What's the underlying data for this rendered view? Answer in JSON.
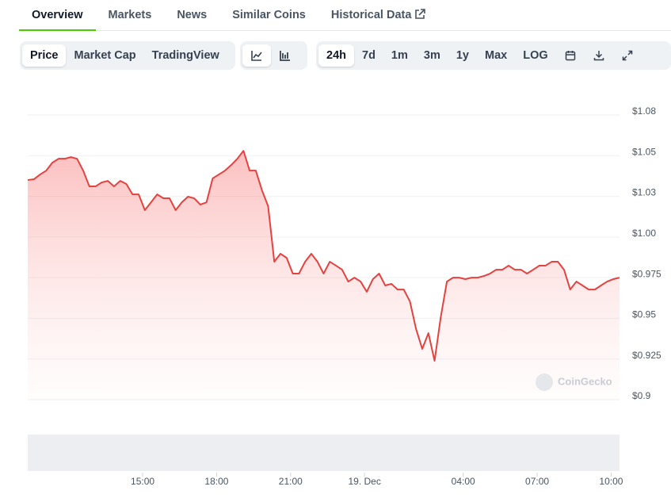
{
  "tabs": [
    "Overview",
    "Markets",
    "News",
    "Similar Coins",
    "Historical Data"
  ],
  "chart_type_buttons": [
    "Price",
    "Market Cap",
    "TradingView"
  ],
  "range_buttons": [
    "24h",
    "7d",
    "1m",
    "3m",
    "1y",
    "Max",
    "LOG"
  ],
  "watermark": "CoinGecko",
  "chart_data": {
    "type": "line",
    "color": "#e5423f",
    "grid": true,
    "ylim": [
      0.9,
      1.075
    ],
    "yticks": [
      {
        "value": 0.9,
        "label": "$0.9"
      },
      {
        "value": 0.925,
        "label": "$0.925"
      },
      {
        "value": 0.95,
        "label": "$0.95"
      },
      {
        "value": 0.975,
        "label": "$0.975"
      },
      {
        "value": 1.0,
        "label": "$1.00"
      },
      {
        "value": 1.025,
        "label": "$1.03"
      },
      {
        "value": 1.05,
        "label": "$1.05"
      },
      {
        "value": 1.075,
        "label": "$1.08"
      }
    ],
    "xticks": [
      {
        "value": 18.64,
        "label": "15:00"
      },
      {
        "value": 30.64,
        "label": "18:00"
      },
      {
        "value": 42.64,
        "label": "21:00"
      },
      {
        "value": 54.64,
        "label": "19. Dec"
      },
      {
        "value": 70.64,
        "label": "04:00"
      },
      {
        "value": 82.64,
        "label": "07:00"
      },
      {
        "value": 94.64,
        "label": "10:00"
      }
    ],
    "values": [
      1.035,
      1.0355,
      1.0384,
      1.0408,
      1.0457,
      1.0481,
      1.0481,
      1.0491,
      1.0481,
      1.0408,
      1.0311,
      1.0311,
      1.0335,
      1.0345,
      1.0311,
      1.0345,
      1.0326,
      1.0262,
      1.0262,
      1.0165,
      1.0213,
      1.0262,
      1.0238,
      1.0238,
      1.0165,
      1.0213,
      1.0248,
      1.0238,
      1.0199,
      1.0213,
      1.036,
      1.0384,
      1.0408,
      1.0442,
      1.0481,
      1.053,
      1.0408,
      1.0408,
      1.0287,
      1.0189,
      0.9848,
      0.9897,
      0.9872,
      0.9775,
      0.9775,
      0.9848,
      0.9897,
      0.9848,
      0.9775,
      0.9848,
      0.9824,
      0.9799,
      0.9726,
      0.975,
      0.9726,
      0.9663,
      0.9741,
      0.9775,
      0.9702,
      0.9712,
      0.9677,
      0.9677,
      0.9604,
      0.9434,
      0.9312,
      0.9409,
      0.9239,
      0.9507,
      0.9726,
      0.975,
      0.975,
      0.9741,
      0.975,
      0.975,
      0.976,
      0.9775,
      0.9799,
      0.9799,
      0.9824,
      0.9799,
      0.9799,
      0.9775,
      0.9799,
      0.9824,
      0.9824,
      0.9848,
      0.9848,
      0.9799,
      0.9677,
      0.9726,
      0.9702,
      0.9677,
      0.9677,
      0.9702,
      0.9726,
      0.9741,
      0.975
    ]
  }
}
